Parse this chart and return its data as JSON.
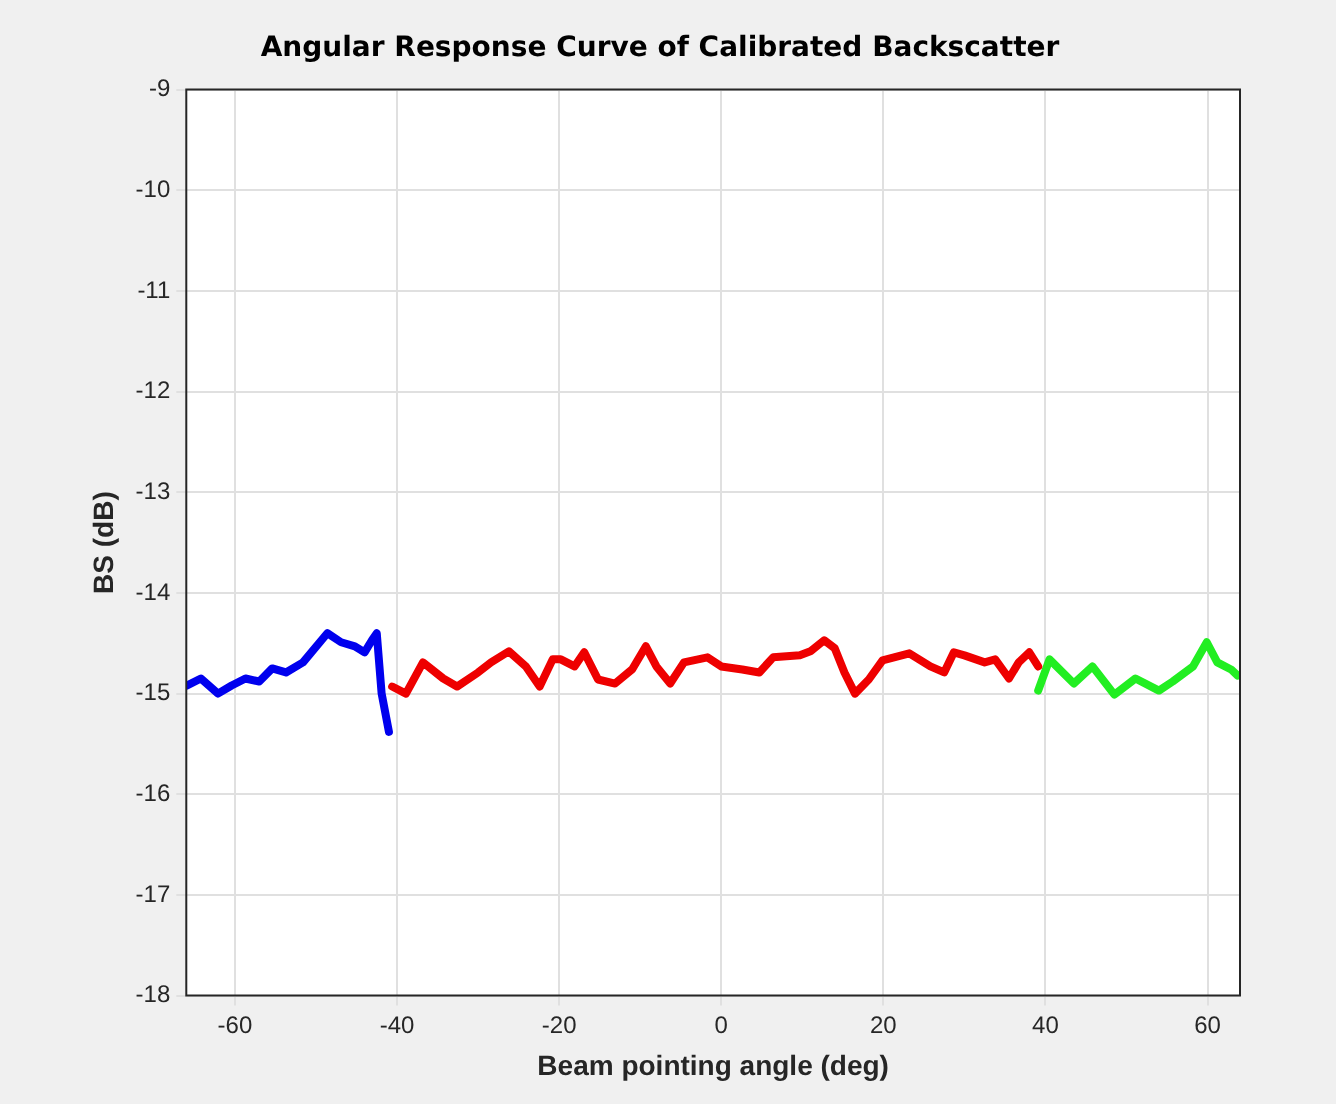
{
  "chart_data": {
    "type": "line",
    "title": "Angular Response Curve of Calibrated Backscatter",
    "xlabel": "Beam pointing angle (deg)",
    "ylabel": "BS (dB)",
    "xlim": [
      -66,
      64
    ],
    "xticks": [
      -60,
      -40,
      -20,
      0,
      20,
      40,
      60
    ],
    "ylim": [
      -18,
      -9
    ],
    "yticks": [
      -18,
      -17,
      -16,
      -15,
      -14,
      -13,
      -12,
      -11,
      -10,
      -9
    ],
    "grid": true,
    "legend": false,
    "marker": "none",
    "line_style": "solid",
    "series": [
      {
        "color": "#0000ee",
        "x": [
          -65.9,
          -64.2,
          -62.1,
          -60.4,
          -58.7,
          -57.0,
          -55.4,
          -53.7,
          -51.6,
          -48.6,
          -46.9,
          -45.2,
          -44.0,
          -43.1,
          -42.5,
          -41.9,
          -41.0
        ],
        "values": [
          -14.92,
          -14.85,
          -15.0,
          -14.92,
          -14.85,
          -14.88,
          -14.75,
          -14.79,
          -14.69,
          -14.4,
          -14.49,
          -14.53,
          -14.59,
          -14.47,
          -14.4,
          -15.0,
          -15.38
        ]
      },
      {
        "color": "#ee0000",
        "x": [
          -40.6,
          -38.9,
          -36.8,
          -34.3,
          -32.6,
          -30.0,
          -28.4,
          -26.2,
          -24.1,
          -22.4,
          -20.8,
          -19.8,
          -18.1,
          -16.9,
          -15.2,
          -13.1,
          -11.0,
          -9.3,
          -8.0,
          -6.3,
          -4.6,
          -1.7,
          0.0,
          2.6,
          4.7,
          6.4,
          9.7,
          11.0,
          12.7,
          14.0,
          15.2,
          16.5,
          18.2,
          19.9,
          23.2,
          25.8,
          27.5,
          28.7,
          30.0,
          32.5,
          33.8,
          35.5,
          36.7,
          38.0,
          39.1
        ],
        "values": [
          -14.93,
          -15.0,
          -14.69,
          -14.85,
          -14.93,
          -14.79,
          -14.69,
          -14.58,
          -14.73,
          -14.93,
          -14.66,
          -14.66,
          -14.73,
          -14.59,
          -14.86,
          -14.9,
          -14.76,
          -14.53,
          -14.73,
          -14.9,
          -14.69,
          -14.64,
          -14.73,
          -14.76,
          -14.79,
          -14.64,
          -14.62,
          -14.58,
          -14.47,
          -14.55,
          -14.79,
          -15.0,
          -14.86,
          -14.67,
          -14.6,
          -14.73,
          -14.79,
          -14.59,
          -14.62,
          -14.69,
          -14.66,
          -14.85,
          -14.69,
          -14.59,
          -14.73
        ]
      },
      {
        "color": "#22ee22",
        "x": [
          39.1,
          40.5,
          43.5,
          45.8,
          48.5,
          51.1,
          54.0,
          55.7,
          58.2,
          59.9,
          61.2,
          62.9,
          63.7
        ],
        "values": [
          -14.97,
          -14.66,
          -14.9,
          -14.73,
          -15.01,
          -14.85,
          -14.97,
          -14.88,
          -14.73,
          -14.49,
          -14.69,
          -14.76,
          -14.82
        ]
      }
    ]
  }
}
